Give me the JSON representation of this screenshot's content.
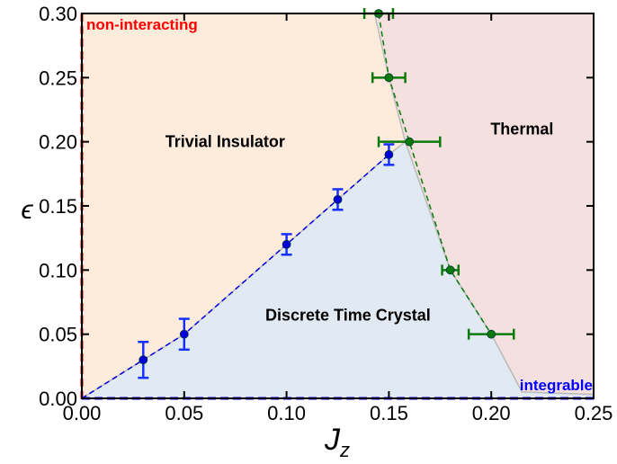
{
  "chart_data": {
    "type": "scatter",
    "xlabel": "J_z",
    "ylabel": "ϵ",
    "xlim": [
      0,
      0.25
    ],
    "ylim": [
      0,
      0.3
    ],
    "xticks": [
      "0.00",
      "0.05",
      "0.10",
      "0.15",
      "0.20",
      "0.25"
    ],
    "yticks": [
      "0.00",
      "0.05",
      "0.10",
      "0.15",
      "0.20",
      "0.25",
      "0.30"
    ],
    "grid": false,
    "regions": [
      {
        "label": "Trivial Insulator",
        "color": "#fdebdc",
        "label_at": [
          0.07,
          0.2
        ]
      },
      {
        "label": "Discrete Time Crystal",
        "color": "#e1e9f3",
        "label_at": [
          0.13,
          0.065
        ]
      },
      {
        "label": "Thermal",
        "color": "#f4e0de",
        "label_at": [
          0.215,
          0.21
        ]
      }
    ],
    "region_boundaries": {
      "dtc": [
        [
          0,
          0
        ],
        [
          0.03,
          0.03
        ],
        [
          0.05,
          0.05
        ],
        [
          0.1,
          0.12
        ],
        [
          0.125,
          0.155
        ],
        [
          0.15,
          0.19
        ],
        [
          0.158,
          0.2
        ],
        [
          0.18,
          0.1
        ],
        [
          0.2,
          0.05
        ],
        [
          0.215,
          0.005
        ],
        [
          0.25,
          0.003
        ],
        [
          0.25,
          0
        ],
        [
          0,
          0
        ]
      ],
      "thermal": [
        [
          0.143,
          0.3
        ],
        [
          0.15,
          0.25
        ],
        [
          0.158,
          0.2
        ],
        [
          0.18,
          0.1
        ],
        [
          0.2,
          0.05
        ],
        [
          0.215,
          0.005
        ],
        [
          0.25,
          0.003
        ],
        [
          0.25,
          0.3
        ]
      ]
    },
    "boundary_labels": [
      {
        "label": "non-interacting",
        "color": "#ff0000"
      },
      {
        "label": "integrable",
        "color": "#0000ff"
      }
    ],
    "series": [
      {
        "color": "#0000dd",
        "error_axis": "y",
        "x": [
          0.03,
          0.05,
          0.1,
          0.125,
          0.15
        ],
        "y": [
          0.03,
          0.05,
          0.12,
          0.155,
          0.19
        ],
        "err": [
          0.014,
          0.012,
          0.008,
          0.008,
          0.008
        ]
      },
      {
        "color": "#0a7a0a",
        "error_axis": "x",
        "x": [
          0.145,
          0.15,
          0.16,
          0.18,
          0.2
        ],
        "y": [
          0.3,
          0.25,
          0.2,
          0.1,
          0.05
        ],
        "err": [
          0.007,
          0.008,
          0.015,
          0.004,
          0.011
        ]
      }
    ]
  }
}
